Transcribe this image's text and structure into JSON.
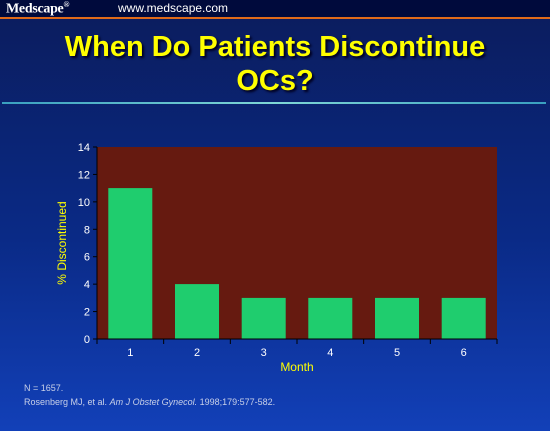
{
  "header": {
    "brand": "Medscape",
    "brand_mark": "®",
    "site_url": "www.medscape.com"
  },
  "slide": {
    "title_line1": "When Do Patients Discontinue",
    "title_line2": "OCs?"
  },
  "footnote": {
    "n": "N = 1657.",
    "ref_prefix": "Rosenberg MJ, et al.",
    "ref_journal": "Am J Obstet Gynecol.",
    "ref_suffix": "1998;179:577-582."
  },
  "colors": {
    "plot_bg": "#661a10",
    "bar": "#1fcd6e",
    "title": "#ffff00",
    "axis_label": "#ffff00",
    "tick_text": "#ffffff"
  },
  "chart_data": {
    "type": "bar",
    "categories": [
      "1",
      "2",
      "3",
      "4",
      "5",
      "6"
    ],
    "values": [
      11,
      4,
      3,
      3,
      3,
      3
    ],
    "xlabel": "Month",
    "ylabel": "% Discontinued",
    "ylim": [
      0,
      14
    ],
    "yticks": [
      0,
      2,
      4,
      6,
      8,
      10,
      12,
      14
    ],
    "grid": false
  }
}
